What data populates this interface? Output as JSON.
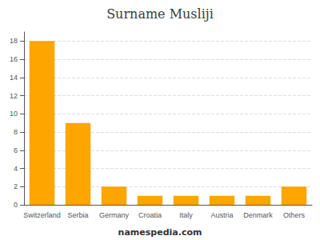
{
  "chart_data": {
    "type": "bar",
    "title": "Surname Musliji",
    "categories": [
      "Switzerland",
      "Serbia",
      "Germany",
      "Croatia",
      "Italy",
      "Austria",
      "Denmark",
      "Others"
    ],
    "values": [
      18,
      9,
      2,
      1,
      1,
      1,
      1,
      2
    ],
    "color": "#FFA500",
    "ylim": [
      0,
      19
    ],
    "yticks": [
      0,
      2,
      4,
      6,
      8,
      10,
      12,
      14,
      16,
      18
    ],
    "grid": true,
    "annotations": [
      "namespedia.com"
    ]
  }
}
